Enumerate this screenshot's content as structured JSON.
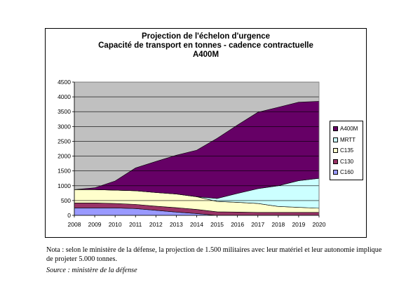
{
  "chart_data": {
    "type": "area",
    "stacked": true,
    "title_lines": [
      "Projection de l'échelon d'urgence",
      "Capacité de transport en tonnes - cadence contractuelle",
      "A400M"
    ],
    "x": [
      "2008",
      "2009",
      "2010",
      "2011",
      "2012",
      "2013",
      "2014",
      "2015",
      "2016",
      "2017",
      "2018",
      "2019",
      "2020"
    ],
    "ylim": [
      0,
      4500
    ],
    "yticks": [
      0,
      500,
      1000,
      1500,
      2000,
      2500,
      3000,
      3500,
      4000,
      4500
    ],
    "grid": true,
    "legend_position": "right",
    "plot_background": "#c0c0c0",
    "series": [
      {
        "name": "C160",
        "color": "#9999ff",
        "values": [
          250,
          250,
          250,
          230,
          170,
          110,
          60,
          0,
          0,
          0,
          0,
          0,
          0
        ]
      },
      {
        "name": "C130",
        "color": "#993366",
        "values": [
          170,
          170,
          150,
          140,
          140,
          150,
          140,
          120,
          110,
          100,
          100,
          100,
          100
        ]
      },
      {
        "name": "C135",
        "color": "#ffffcc",
        "values": [
          450,
          450,
          450,
          460,
          460,
          460,
          430,
          350,
          330,
          300,
          200,
          170,
          140
        ]
      },
      {
        "name": "MRTT",
        "color": "#ccffff",
        "values": [
          0,
          0,
          0,
          0,
          0,
          0,
          0,
          100,
          300,
          500,
          700,
          900,
          1010
        ]
      },
      {
        "name": "A400M",
        "color": "#660066",
        "values": [
          0,
          60,
          310,
          770,
          1050,
          1310,
          1570,
          2030,
          2310,
          2580,
          2650,
          2650,
          2600
        ]
      }
    ]
  },
  "note": "Nota : selon le ministère de la défense, la projection de 1.500 militaires avec leur matériel et leur autonomie implique de projeter 5.000 tonnes.",
  "source": "Source : ministère de la défense"
}
